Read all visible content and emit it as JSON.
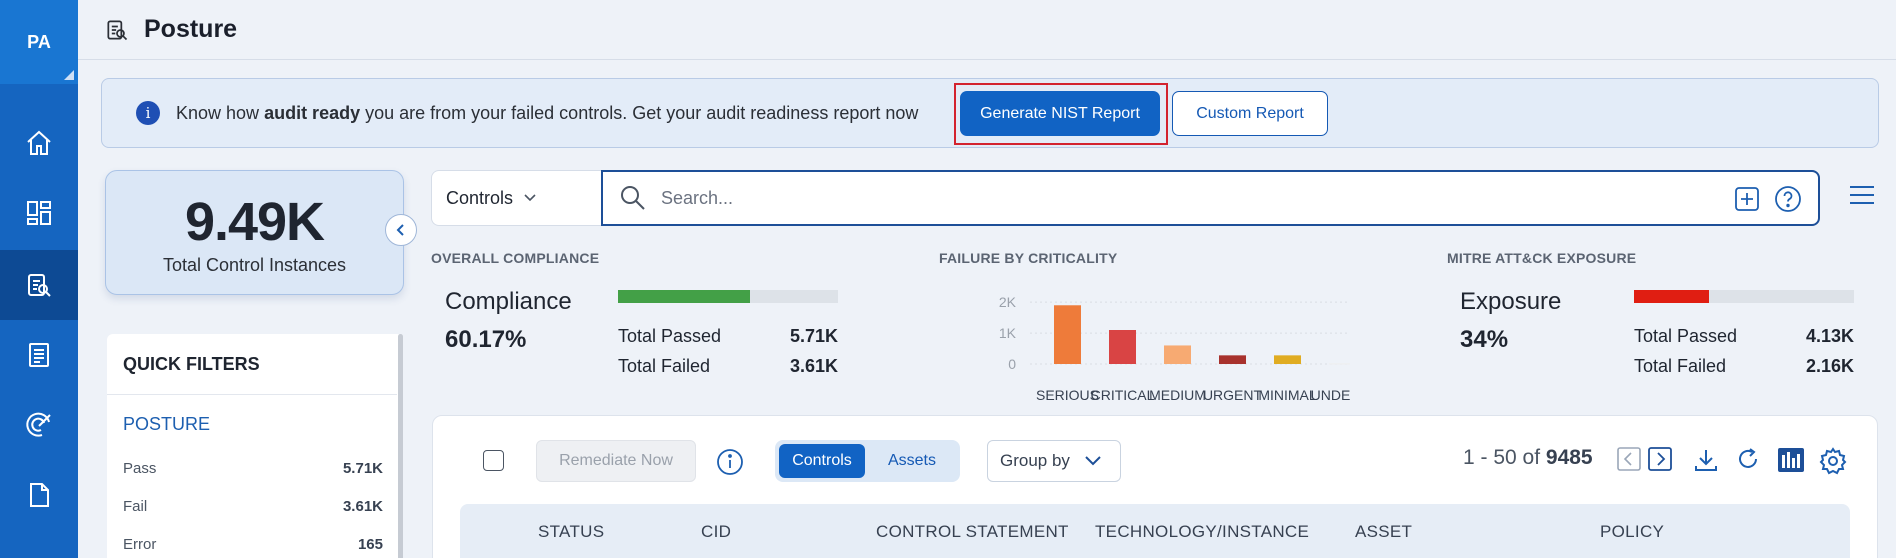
{
  "rail": {
    "avatar": "PA",
    "items": [
      {
        "name": "home-icon"
      },
      {
        "name": "dashboard-icon"
      },
      {
        "name": "posture-icon",
        "active": true
      },
      {
        "name": "report-icon"
      },
      {
        "name": "radar-icon"
      },
      {
        "name": "document-icon"
      }
    ]
  },
  "header": {
    "title": "Posture",
    "icon": "posture-icon"
  },
  "banner": {
    "text_before": "Know how ",
    "text_bold": "audit ready",
    "text_after": " you are from your failed controls. Get your audit readiness report now",
    "primary_button": "Generate NIST Report",
    "secondary_button": "Custom Report"
  },
  "stat": {
    "value": "9.49K",
    "label": "Total Control Instances"
  },
  "quick_filters": {
    "title": "QUICK FILTERS",
    "section": "POSTURE",
    "rows": [
      {
        "label": "Pass",
        "value": "5.71K"
      },
      {
        "label": "Fail",
        "value": "3.61K"
      },
      {
        "label": "Error",
        "value": "165"
      }
    ]
  },
  "search": {
    "scope": "Controls",
    "placeholder": "Search..."
  },
  "overall_compliance": {
    "section_title": "OVERALL COMPLIANCE",
    "name": "Compliance",
    "value": "60.17%",
    "fill_fraction": 0.6017,
    "fill_color": "#43a047",
    "passed_label": "Total Passed",
    "passed_value": "5.71K",
    "failed_label": "Total Failed",
    "failed_value": "3.61K"
  },
  "failure_by_criticality": {
    "section_title": "FAILURE BY CRITICALITY"
  },
  "mitre": {
    "section_title": "MITRE ATT&CK EXPOSURE",
    "name": "Exposure",
    "value": "34%",
    "fill_fraction": 0.34,
    "fill_color": "#e01e12",
    "passed_label": "Total Passed",
    "passed_value": "4.13K",
    "failed_label": "Total Failed",
    "failed_value": "2.16K"
  },
  "chart_data": {
    "type": "bar",
    "categories": [
      "SERIOUS",
      "CRITICAL",
      "MEDIUM",
      "URGENT",
      "MINIMAL",
      "UNDEFI..."
    ],
    "values": [
      1900,
      1100,
      600,
      280,
      280,
      20
    ],
    "colors": [
      "#ee7b3a",
      "#d94444",
      "#f7aa72",
      "#a8322d",
      "#e0ac22",
      "#eeeeee"
    ],
    "ylim": [
      0,
      2200
    ],
    "yticks": [
      "2K",
      "1K",
      "0"
    ],
    "ytick_values": [
      2000,
      1000,
      0
    ],
    "grid": true
  },
  "table_toolbar": {
    "remediate": "Remediate Now",
    "seg_on": "Controls",
    "seg_off": "Assets",
    "group_by": "Group by",
    "pager_range": "1 - 50 of ",
    "pager_total": "9485"
  },
  "table": {
    "columns": [
      "STATUS",
      "CID",
      "CONTROL STATEMENT",
      "TECHNOLOGY/INSTANCE",
      "ASSET",
      "POLICY"
    ]
  }
}
